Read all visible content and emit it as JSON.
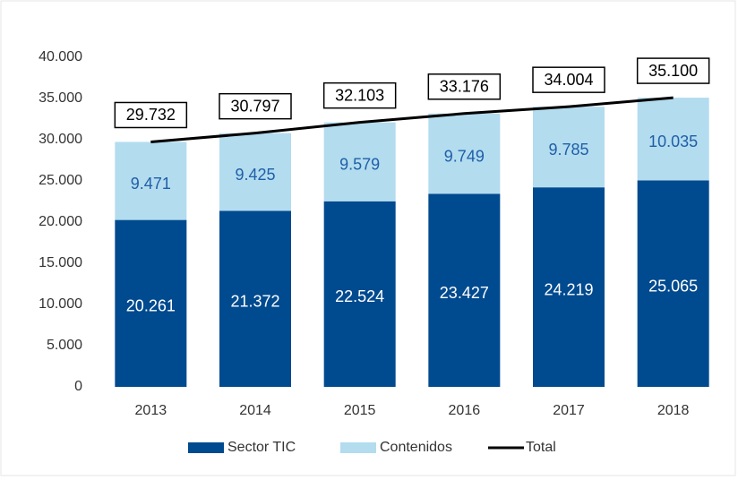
{
  "chart_data": {
    "type": "bar",
    "stacked": true,
    "categories": [
      "2013",
      "2014",
      "2015",
      "2016",
      "2017",
      "2018"
    ],
    "series": [
      {
        "name": "Sector TIC",
        "color": "#004a8f",
        "label_color": "#ffffff",
        "values": [
          20261,
          21372,
          22524,
          23427,
          24219,
          25065
        ],
        "value_labels": [
          "20.261",
          "21.372",
          "22.524",
          "23.427",
          "24.219",
          "25.065"
        ]
      },
      {
        "name": "Contenidos",
        "color": "#b3dcef",
        "label_color": "#1f5fa8",
        "values": [
          9471,
          9425,
          9579,
          9749,
          9785,
          10035
        ],
        "value_labels": [
          "9.471",
          "9.425",
          "9.579",
          "9.749",
          "9.785",
          "10.035"
        ]
      },
      {
        "name": "Total",
        "type": "line",
        "color": "#000000",
        "label_color": "#000000",
        "values": [
          29732,
          30797,
          32103,
          33176,
          34004,
          35100
        ],
        "value_labels": [
          "29.732",
          "30.797",
          "32.103",
          "33.176",
          "34.004",
          "35.100"
        ]
      }
    ],
    "ylim": [
      0,
      40000
    ],
    "yticks": [
      0,
      {
        "value": 5000,
        "label": "5.000"
      },
      {
        "value": 10000,
        "label": "10.000"
      },
      {
        "value": 15000,
        "label": "15.000"
      },
      {
        "value": 20000,
        "label": "20.000"
      },
      {
        "value": 25000,
        "label": "25.000"
      },
      {
        "value": 30000,
        "label": "30.000"
      },
      {
        "value": 35000,
        "label": "35.000"
      },
      {
        "value": 40000,
        "label": "40.000"
      }
    ],
    "grid": false,
    "legend": "bottom"
  }
}
